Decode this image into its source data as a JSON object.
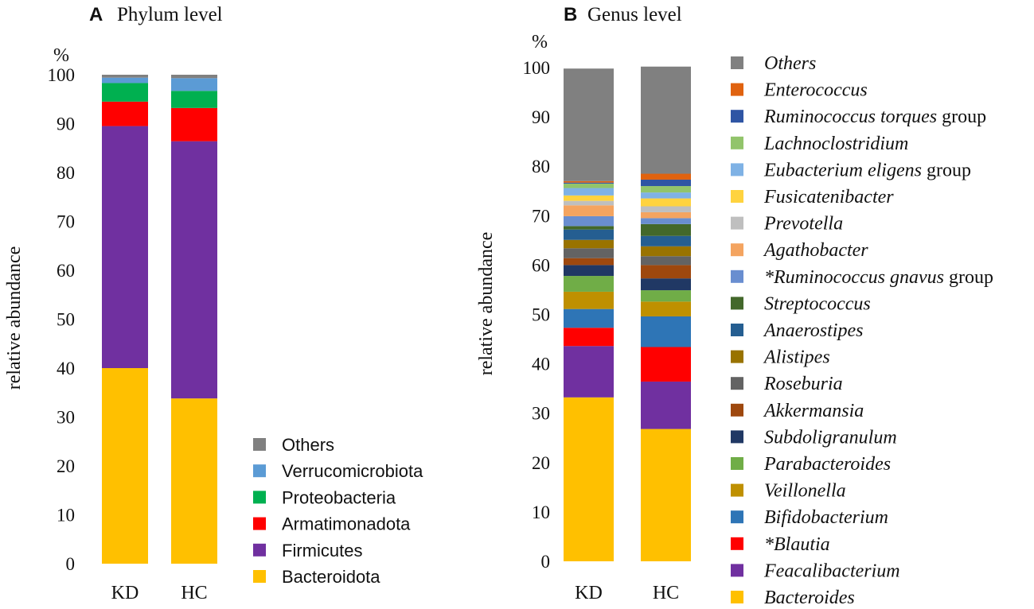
{
  "chart_data": [
    {
      "type": "bar",
      "stacked": true,
      "panel_label": "A",
      "title": "Phylum level",
      "unit": "%",
      "ylabel": "relative abundance",
      "xlabel": "",
      "ylim": [
        0,
        100
      ],
      "yticks": [
        0,
        10,
        20,
        30,
        40,
        50,
        60,
        70,
        80,
        90,
        100
      ],
      "categories": [
        "KD",
        "HC"
      ],
      "legend_position": "right-bottom",
      "series": [
        {
          "name": "Bacteroidota",
          "color": "#FFC000",
          "values": [
            40.0,
            33.8
          ]
        },
        {
          "name": "Firmicutes",
          "color": "#7030A0",
          "values": [
            49.5,
            52.6
          ]
        },
        {
          "name": "Armatimonadota",
          "color": "#FF0000",
          "values": [
            5.0,
            6.8
          ]
        },
        {
          "name": "Proteobacteria",
          "color": "#00B050",
          "values": [
            3.8,
            3.5
          ]
        },
        {
          "name": "Verrucomicrobiota",
          "color": "#5B9BD5",
          "values": [
            1.1,
            2.6
          ]
        },
        {
          "name": "Others",
          "color": "#808080",
          "values": [
            0.6,
            0.7
          ]
        }
      ]
    },
    {
      "type": "bar",
      "stacked": true,
      "panel_label": "B",
      "title": "Genus level",
      "unit": "%",
      "ylabel": "relative abundance",
      "xlabel": "",
      "ylim": [
        0,
        100
      ],
      "yticks": [
        0,
        10,
        20,
        30,
        40,
        50,
        60,
        70,
        80,
        90,
        100
      ],
      "categories": [
        "KD",
        "HC"
      ],
      "legend_position": "right",
      "series": [
        {
          "name": "Bacteroides",
          "italic": true,
          "color": "#FFC000",
          "values": [
            33.2,
            26.8
          ]
        },
        {
          "name": "Feacalibacterium",
          "italic": true,
          "color": "#7030A0",
          "values": [
            10.4,
            9.6
          ]
        },
        {
          "name": "*Blautia",
          "italic": true,
          "color": "#FF0000",
          "values": [
            3.7,
            7.0
          ]
        },
        {
          "name": "Bifidobacterium",
          "italic": true,
          "color": "#2E75B6",
          "values": [
            3.8,
            6.2
          ]
        },
        {
          "name": "Veillonella",
          "italic": true,
          "color": "#BF9000",
          "values": [
            3.5,
            3.0
          ]
        },
        {
          "name": "Parabacteroides",
          "italic": true,
          "color": "#70AD47",
          "values": [
            3.2,
            2.3
          ]
        },
        {
          "name": "Subdoligranulum",
          "italic": true,
          "color": "#203864",
          "values": [
            2.2,
            2.4
          ]
        },
        {
          "name": "Akkermansia",
          "italic": true,
          "color": "#9E480E",
          "values": [
            1.4,
            2.7
          ]
        },
        {
          "name": "Roseburia",
          "italic": true,
          "color": "#636363",
          "values": [
            2.0,
            1.8
          ]
        },
        {
          "name": "Alistipes",
          "italic": true,
          "color": "#997300",
          "values": [
            1.7,
            2.0
          ]
        },
        {
          "name": "Anaerostipes",
          "italic": true,
          "color": "#255E91",
          "values": [
            2.1,
            2.1
          ]
        },
        {
          "name": "Streptococcus",
          "italic": true,
          "color": "#43682B",
          "values": [
            0.7,
            2.4
          ]
        },
        {
          "name": "*Ruminococcus gnavus",
          "suffix": " group",
          "italic": true,
          "color": "#698ED0",
          "values": [
            2.0,
            1.2
          ]
        },
        {
          "name": "Agathobacter",
          "italic": true,
          "color": "#F4A460",
          "values": [
            2.2,
            1.2
          ]
        },
        {
          "name": "Prevotella",
          "italic": true,
          "color": "#BFBFBF",
          "values": [
            0.9,
            1.2
          ]
        },
        {
          "name": "Fusicatenibacter",
          "italic": true,
          "color": "#FFD33F",
          "values": [
            1.1,
            1.6
          ]
        },
        {
          "name": "Eubacterium eligens",
          "suffix": " group",
          "italic": true,
          "color": "#7FB2E5",
          "values": [
            1.5,
            1.2
          ]
        },
        {
          "name": "Lachnoclostridium",
          "italic": true,
          "color": "#92C46B",
          "values": [
            0.9,
            1.3
          ]
        },
        {
          "name": "Ruminococcus torques",
          "suffix": " group",
          "italic": true,
          "color": "#2F55A4",
          "values": [
            0.2,
            1.3
          ]
        },
        {
          "name": "Enterococcus",
          "italic": true,
          "color": "#E0620F",
          "values": [
            0.3,
            1.2
          ]
        },
        {
          "name": "Others",
          "italic": true,
          "color": "#808080",
          "values": [
            22.8,
            21.7
          ]
        }
      ]
    }
  ]
}
